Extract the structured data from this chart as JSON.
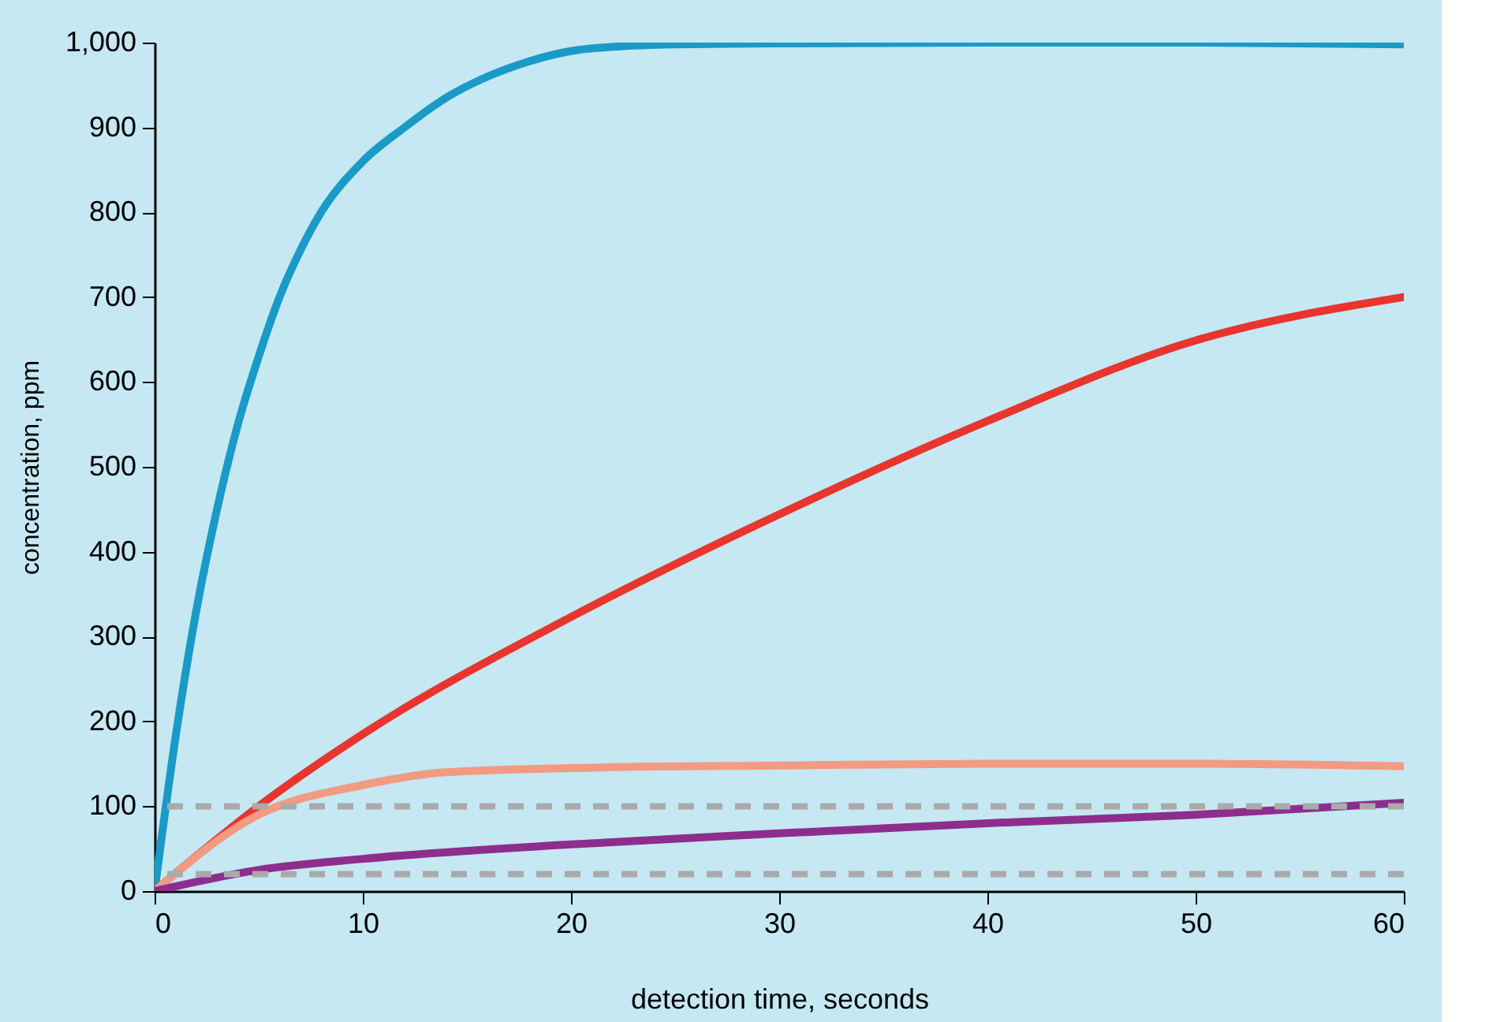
{
  "chart_data": {
    "type": "line",
    "xlabel": "detection time, seconds",
    "ylabel": "concentration, ppm",
    "xlim": [
      0,
      60
    ],
    "xticks": [
      0,
      10,
      20,
      30,
      40,
      50,
      60
    ],
    "ylim": [
      0,
      1000
    ],
    "yticks": [
      0,
      100,
      200,
      300,
      400,
      500,
      600,
      700,
      800,
      900,
      {
        "value": 1000,
        "label": "1,000"
      }
    ],
    "grid": false,
    "legend": false,
    "marker": "none",
    "line_style": "solid",
    "series": [
      {
        "color": "#1a9ac6",
        "x": [
          0,
          1,
          2,
          3,
          4,
          5,
          6,
          7,
          8,
          10,
          12,
          14,
          16,
          18,
          20,
          22,
          25,
          30,
          40,
          50,
          60
        ],
        "values": [
          0,
          180,
          330,
          450,
          550,
          630,
          700,
          755,
          800,
          860,
          900,
          935,
          960,
          978,
          990,
          995,
          998,
          999,
          1000,
          1000,
          998
        ]
      },
      {
        "color": "#e8352e",
        "x": [
          0,
          5,
          10,
          20,
          30,
          40,
          50,
          60
        ],
        "values": [
          0,
          100,
          185,
          323,
          444,
          554,
          649,
          700
        ]
      },
      {
        "color": "#f29a82",
        "x": [
          0,
          5,
          10,
          14,
          20,
          30,
          40,
          50,
          60
        ],
        "values": [
          0,
          90,
          125,
          140,
          145,
          148,
          150,
          150,
          147
        ]
      },
      {
        "color": "#8e2d8e",
        "x": [
          0,
          5,
          10,
          20,
          30,
          40,
          50,
          60
        ],
        "values": [
          0,
          25,
          38,
          55,
          68,
          80,
          90,
          104
        ]
      }
    ],
    "ref_lines": [
      {
        "axis": "y",
        "value": 100,
        "color": "#aaaaaa",
        "line_style": "dashed"
      },
      {
        "axis": "y",
        "value": 20,
        "color": "#aaaaaa",
        "line_style": "dashed"
      }
    ]
  }
}
